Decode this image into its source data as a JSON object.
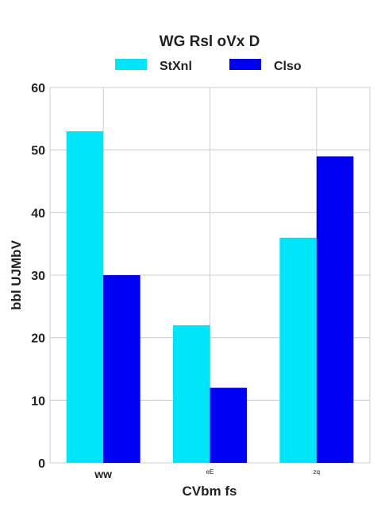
{
  "chart_data": {
    "type": "bar",
    "title": "WG Rsl oVx D",
    "xlabel": "CVbm  fs",
    "ylabel": "bbl UJMbV",
    "categories": [
      "ww",
      "eE",
      "zq"
    ],
    "category_label_sizes": [
      14,
      8,
      8
    ],
    "series": [
      {
        "name": "StXnl",
        "color": "#00e5f8",
        "values": [
          53,
          22,
          36
        ]
      },
      {
        "name": "Clso",
        "color": "#0000f5",
        "values": [
          30,
          12,
          49
        ]
      }
    ],
    "ylim": [
      0,
      60
    ],
    "yticks": [
      "0",
      "10",
      "20",
      "30",
      "40",
      "50",
      "60"
    ],
    "grid": true,
    "legend_position": "top"
  }
}
